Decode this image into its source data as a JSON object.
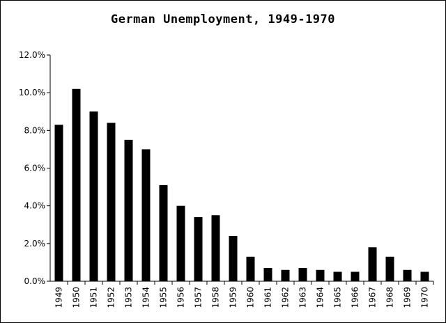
{
  "chart_data": {
    "type": "bar",
    "title": "German Unemployment, 1949-1970",
    "xlabel": "",
    "ylabel": "",
    "ylim": [
      0,
      12
    ],
    "y_ticks": [
      "0.0%",
      "2.0%",
      "4.0%",
      "6.0%",
      "8.0%",
      "10.0%",
      "12.0%"
    ],
    "categories": [
      "1949",
      "1950",
      "1951",
      "1952",
      "1953",
      "1954",
      "1955",
      "1956",
      "1957",
      "1958",
      "1959",
      "1960",
      "1961",
      "1962",
      "1963",
      "1964",
      "1965",
      "1966",
      "1967",
      "1968",
      "1969",
      "1970"
    ],
    "values": [
      8.3,
      10.2,
      9.0,
      8.4,
      7.5,
      7.0,
      5.1,
      4.0,
      3.4,
      3.5,
      2.4,
      1.3,
      0.7,
      0.6,
      0.7,
      0.6,
      0.5,
      0.5,
      1.8,
      1.3,
      0.6,
      0.5
    ],
    "grid": false,
    "legend": "none",
    "bar_color": "#000000"
  }
}
